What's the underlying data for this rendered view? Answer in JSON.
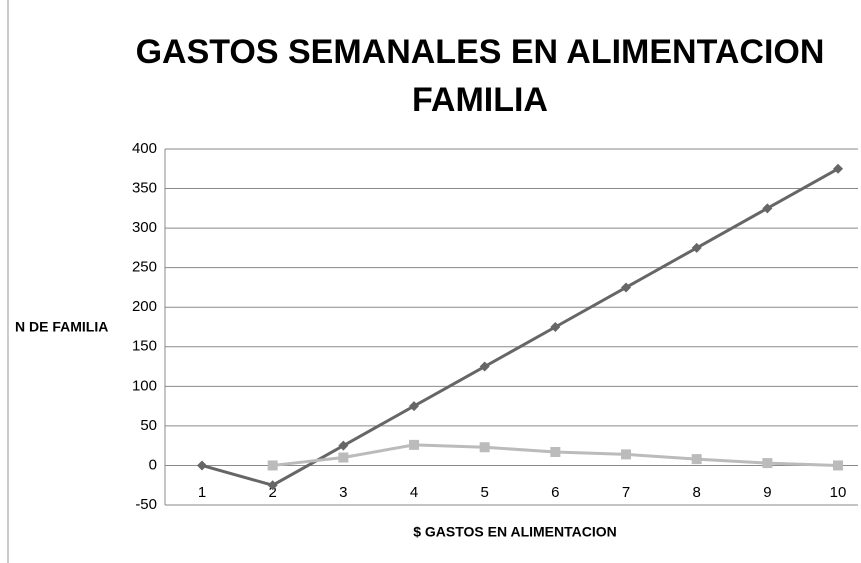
{
  "chart_data": {
    "type": "line",
    "title": "GASTOS SEMANALES EN ALIMENTACION FAMILIA",
    "x_label": "$ GASTOS EN ALIMENTACION",
    "y_label": "N DE FAMILIA",
    "categories": [
      "1",
      "2",
      "3",
      "4",
      "5",
      "6",
      "7",
      "8",
      "9",
      "10"
    ],
    "series": [
      {
        "color": "#666666",
        "marker": "diamond",
        "values": [
          0,
          -25,
          25,
          75,
          125,
          175,
          225,
          275,
          325,
          375
        ]
      },
      {
        "color": "#bbbbbb",
        "marker": "square",
        "values": [
          null,
          0,
          10,
          26,
          23,
          17,
          14,
          8,
          3,
          0
        ]
      }
    ],
    "ylim": [
      -50,
      400
    ],
    "yticks": [
      -50,
      0,
      50,
      100,
      150,
      200,
      250,
      300,
      350,
      400
    ],
    "grid": true
  }
}
